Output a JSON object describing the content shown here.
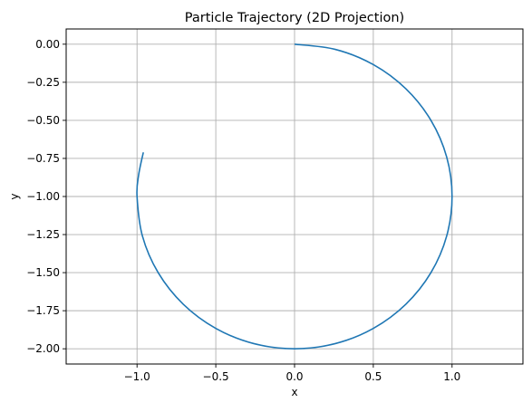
{
  "chart_data": {
    "type": "line",
    "title": "Particle Trajectory (2D Projection)",
    "xlabel": "x",
    "ylabel": "y",
    "xlim": [
      -1.45,
      1.45
    ],
    "ylim": [
      -2.1,
      0.1
    ],
    "xticks": [
      -1.0,
      -0.5,
      0.0,
      0.5,
      1.0
    ],
    "xtick_labels": [
      "−1.0",
      "−0.5",
      "0.0",
      "0.5",
      "1.0"
    ],
    "yticks": [
      0.0,
      -0.25,
      -0.5,
      -0.75,
      -1.0,
      -1.25,
      -1.5,
      -1.75,
      -2.0
    ],
    "ytick_labels": [
      "0.00",
      "−0.25",
      "−0.50",
      "−0.75",
      "−1.00",
      "−1.25",
      "−1.50",
      "−1.75",
      "−2.00"
    ],
    "grid": true,
    "series": [
      {
        "color": "#1f77b4",
        "x": [
          0.0,
          0.259,
          0.5,
          0.707,
          0.866,
          0.966,
          1.0,
          0.966,
          0.866,
          0.707,
          0.5,
          0.259,
          0.0,
          -0.259,
          -0.5,
          -0.707,
          -0.866,
          -0.966,
          -1.0,
          -0.99,
          -0.96
        ],
        "y": [
          0.0,
          -0.034,
          -0.134,
          -0.293,
          -0.5,
          -0.741,
          -1.0,
          -1.259,
          -1.5,
          -1.707,
          -1.866,
          -1.966,
          -2.0,
          -1.966,
          -1.866,
          -1.707,
          -1.5,
          -1.259,
          -1.0,
          -0.86,
          -0.71
        ]
      }
    ]
  }
}
